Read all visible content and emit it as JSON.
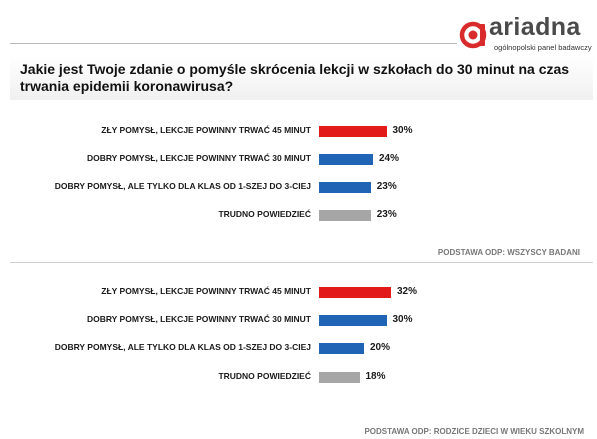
{
  "brand": {
    "name": "ariadna",
    "tagline": "ogólnopolski panel badawczy",
    "color": "#d92b2b"
  },
  "question": "Jakie jest Twoje zdanie o pomyśle skrócenia lekcji w szkołach do 30 minut na czas trwania epidemii koronawirusa?",
  "colors": {
    "red": "#e21a1a",
    "blue": "#1f64b5",
    "gray": "#a6a6a6"
  },
  "chart_data": [
    {
      "type": "bar",
      "orientation": "horizontal",
      "base_note": "PODSTAWA ODP: WSZYSCY BADANI",
      "categories": [
        "ZŁY POMYSŁ, LEKCJE POWINNY TRWAĆ 45 MINUT",
        "DOBRY POMYSŁ, LEKCJE POWINNY TRWAĆ 30 MINUT",
        "DOBRY POMYSŁ, ALE TYLKO DLA KLAS OD 1-SZEJ DO 3-CIEJ",
        "TRUDNO POWIEDZIEĆ"
      ],
      "values": [
        30,
        24,
        23,
        23
      ],
      "value_labels": [
        "30%",
        "24%",
        "23%",
        "23%"
      ],
      "bar_colors": [
        "red",
        "blue",
        "blue",
        "gray"
      ]
    },
    {
      "type": "bar",
      "orientation": "horizontal",
      "base_note": "PODSTAWA ODP: RODZICE DZIECI W WIEKU SZKOLNYM",
      "categories": [
        "ZŁY POMYSŁ, LEKCJE POWINNY TRWAĆ 45 MINUT",
        "DOBRY POMYSŁ, LEKCJE POWINNY TRWAĆ 30 MINUT",
        "DOBRY POMYSŁ, ALE TYLKO DLA KLAS OD 1-SZEJ DO 3-CIEJ",
        "TRUDNO POWIEDZIEĆ"
      ],
      "values": [
        32,
        30,
        20,
        18
      ],
      "value_labels": [
        "32%",
        "30%",
        "20%",
        "18%"
      ],
      "bar_colors": [
        "red",
        "blue",
        "blue",
        "gray"
      ]
    }
  ]
}
